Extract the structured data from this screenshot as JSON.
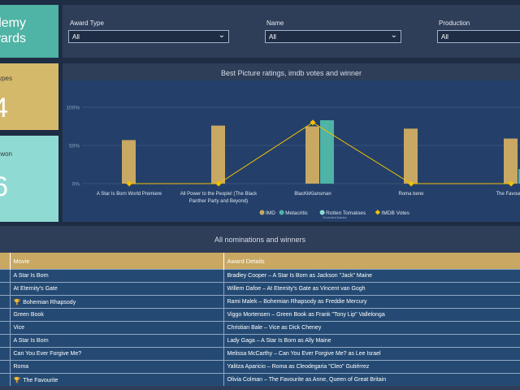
{
  "title_tile": {
    "line1": "ademy",
    "line2": "wards"
  },
  "tile_types": {
    "label": "types",
    "value": "4"
  },
  "tile_won": {
    "label": "won",
    "value": "6"
  },
  "filters": [
    {
      "label": "Award Type",
      "value": "All"
    },
    {
      "label": "Name",
      "value": "All"
    },
    {
      "label": "Production",
      "value": "All"
    }
  ],
  "chart": {
    "title": "Best Picture ratings, imdb votes and winner",
    "legend": [
      {
        "name": "IMD",
        "color": "#c8a862"
      },
      {
        "name": "Metacritic",
        "color": "#4fb3a5"
      },
      {
        "name": "Rotten Tomatoes",
        "color": "#8fdad2"
      },
      {
        "name": "IMDB Votes",
        "color": "#f2c200"
      }
    ],
    "legend_note": "Excluded blanks"
  },
  "chart_data": {
    "type": "bar",
    "title": "Best Picture ratings, imdb votes and winner",
    "categories": [
      "A Star Is Born World Premiere",
      "All Power to the People! (The Black Panther Party and Beyond)",
      "BlacKkKlansman",
      "Roma bene",
      "The Favourite"
    ],
    "ylim": [
      0,
      100
    ],
    "yticks": [
      "0%",
      "50%",
      "100%"
    ],
    "series": [
      {
        "name": "IMD",
        "type": "bar",
        "values": [
          57,
          76,
          75,
          72,
          59
        ]
      },
      {
        "name": "Metacritic",
        "type": "bar",
        "values": [
          null,
          null,
          83,
          null,
          19
        ]
      },
      {
        "name": "IMDB Votes",
        "type": "line",
        "values": [
          0,
          0,
          80,
          0,
          0
        ]
      }
    ],
    "grid": true,
    "legend_position": "bottom"
  },
  "table": {
    "title": "All nominations and winners",
    "headers": [
      "Movie",
      "Award Details"
    ],
    "rows": [
      {
        "winner": false,
        "movie": "A Star Is Born",
        "details": "Bradley Cooper – A Star Is Born as Jackson \"Jack\" Maine"
      },
      {
        "winner": false,
        "movie": "At Eternity's Gate",
        "details": "Willem Dafoe – At Eternity's Gate as Vincent van Gogh"
      },
      {
        "winner": true,
        "movie": "Bohemian Rhapsody",
        "details": "Rami Malek – Bohemian Rhapsody as Freddie Mercury"
      },
      {
        "winner": false,
        "movie": "Green Book",
        "details": "Viggo Mortensen – Green Book as Frank \"Tony Lip\" Vallelonga"
      },
      {
        "winner": false,
        "movie": "Vice",
        "details": "Christian Bale – Vice as Dick Cheney"
      },
      {
        "winner": false,
        "movie": "A Star Is Born",
        "details": "Lady Gaga – A Star Is Born as Ally Maine"
      },
      {
        "winner": false,
        "movie": "Can You Ever Forgive Me?",
        "details": "Melissa McCarthy – Can You Ever Forgive Me? as Lee Israel"
      },
      {
        "winner": false,
        "movie": "Roma",
        "details": "Yalitza Aparicio – Roma as Cleodegaria \"Cleo\" Gutiérrez"
      },
      {
        "winner": true,
        "movie": "The Favourite",
        "details": "Olivia Colman – The Favourite as Anne, Queen of Great Britain"
      }
    ]
  }
}
